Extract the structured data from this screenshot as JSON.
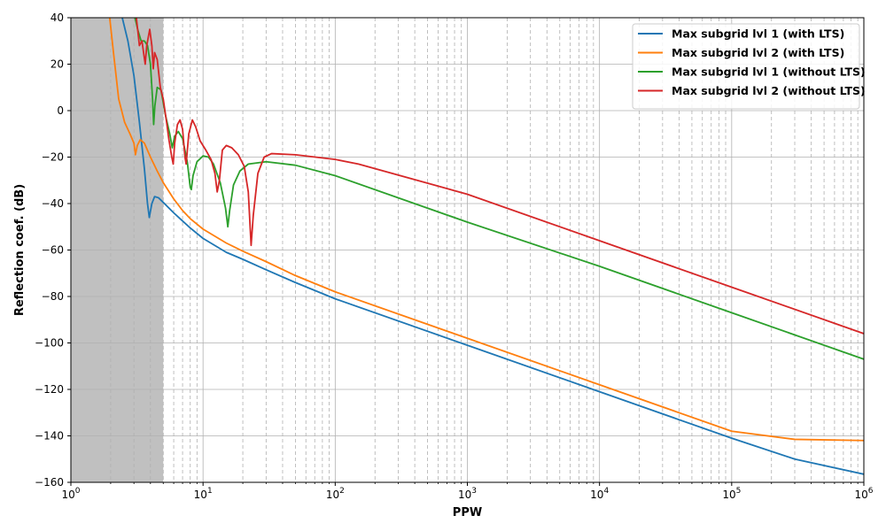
{
  "chart_data": {
    "type": "line",
    "xscale": "log",
    "xlim": [
      1,
      1000000
    ],
    "ylim": [
      -160,
      40
    ],
    "xlabel": "PPW",
    "ylabel": "Reflection coef. (dB)",
    "grid": true,
    "legend_position": "top-right",
    "shaded_region": {
      "x": [
        1,
        5
      ],
      "color": "#c0c0c0"
    },
    "xticks": [
      {
        "value": 1,
        "base": "10",
        "exp": "0"
      },
      {
        "value": 10,
        "base": "10",
        "exp": "1"
      },
      {
        "value": 100,
        "base": "10",
        "exp": "2"
      },
      {
        "value": 1000,
        "base": "10",
        "exp": "3"
      },
      {
        "value": 10000,
        "base": "10",
        "exp": "4"
      },
      {
        "value": 100000,
        "base": "10",
        "exp": "5"
      },
      {
        "value": 1000000,
        "base": "10",
        "exp": "6"
      }
    ],
    "yticks": [
      {
        "value": 40,
        "label": "40"
      },
      {
        "value": 20,
        "label": "20"
      },
      {
        "value": 0,
        "label": "0"
      },
      {
        "value": -20,
        "label": "−20"
      },
      {
        "value": -40,
        "label": "−40"
      },
      {
        "value": -60,
        "label": "−60"
      },
      {
        "value": -80,
        "label": "−80"
      },
      {
        "value": -100,
        "label": "−100"
      },
      {
        "value": -120,
        "label": "−120"
      },
      {
        "value": -140,
        "label": "−140"
      },
      {
        "value": -160,
        "label": "−160"
      }
    ],
    "series": [
      {
        "name": "Max subgrid lvl 1 (with LTS)",
        "color": "#1f77b4",
        "points": [
          [
            2.4,
            42
          ],
          [
            2.7,
            30
          ],
          [
            3.0,
            15
          ],
          [
            3.3,
            -5
          ],
          [
            3.6,
            -25
          ],
          [
            3.8,
            -40
          ],
          [
            3.92,
            -46
          ],
          [
            4.1,
            -40
          ],
          [
            4.3,
            -37
          ],
          [
            4.6,
            -37.5
          ],
          [
            5.0,
            -39.5
          ],
          [
            6,
            -44
          ],
          [
            7,
            -47.5
          ],
          [
            8,
            -50.5
          ],
          [
            10,
            -55
          ],
          [
            15,
            -61
          ],
          [
            20,
            -64
          ],
          [
            30,
            -68.5
          ],
          [
            50,
            -74
          ],
          [
            100,
            -81
          ],
          [
            1000,
            -101
          ],
          [
            10000,
            -121
          ],
          [
            100000,
            -141
          ],
          [
            300000,
            -150
          ],
          [
            1000000,
            -156.5
          ]
        ]
      },
      {
        "name": "Max subgrid lvl 2 (with LTS)",
        "color": "#ff7f0e",
        "points": [
          [
            1.95,
            42
          ],
          [
            2.1,
            25
          ],
          [
            2.3,
            5
          ],
          [
            2.55,
            -5
          ],
          [
            2.8,
            -10
          ],
          [
            3.0,
            -14
          ],
          [
            3.08,
            -19
          ],
          [
            3.18,
            -15
          ],
          [
            3.35,
            -12.5
          ],
          [
            3.6,
            -14
          ],
          [
            4.0,
            -20
          ],
          [
            4.5,
            -26
          ],
          [
            5.0,
            -31
          ],
          [
            6,
            -38
          ],
          [
            7,
            -43
          ],
          [
            8,
            -46.5
          ],
          [
            10,
            -51
          ],
          [
            15,
            -57
          ],
          [
            20,
            -60.5
          ],
          [
            30,
            -65
          ],
          [
            50,
            -71
          ],
          [
            100,
            -78
          ],
          [
            1000,
            -98
          ],
          [
            10000,
            -118
          ],
          [
            100000,
            -138
          ],
          [
            300000,
            -141.5
          ],
          [
            1000000,
            -142
          ]
        ]
      },
      {
        "name": "Max subgrid lvl 1 (without LTS)",
        "color": "#2ca02c",
        "points": [
          [
            3.0,
            42
          ],
          [
            3.2,
            35
          ],
          [
            3.4,
            30
          ],
          [
            3.6,
            30
          ],
          [
            3.8,
            28
          ],
          [
            4.0,
            20
          ],
          [
            4.15,
            5
          ],
          [
            4.23,
            -6
          ],
          [
            4.32,
            2
          ],
          [
            4.5,
            10
          ],
          [
            4.8,
            9
          ],
          [
            5.2,
            -2
          ],
          [
            5.6,
            -10
          ],
          [
            5.85,
            -16
          ],
          [
            6.1,
            -11
          ],
          [
            6.5,
            -9
          ],
          [
            7.0,
            -12
          ],
          [
            7.6,
            -22
          ],
          [
            8.0,
            -33
          ],
          [
            8.15,
            -34
          ],
          [
            8.4,
            -28
          ],
          [
            9.0,
            -22
          ],
          [
            10,
            -19.5
          ],
          [
            11,
            -20
          ],
          [
            12,
            -23
          ],
          [
            13.5,
            -31
          ],
          [
            14.8,
            -42
          ],
          [
            15.4,
            -50
          ],
          [
            15.9,
            -43
          ],
          [
            17,
            -32
          ],
          [
            19,
            -26
          ],
          [
            22,
            -23
          ],
          [
            30,
            -22
          ],
          [
            50,
            -23.5
          ],
          [
            100,
            -28
          ],
          [
            1000,
            -48
          ],
          [
            10000,
            -67
          ],
          [
            100000,
            -87
          ],
          [
            1000000,
            -107
          ]
        ]
      },
      {
        "name": "Max subgrid lvl 2 (without LTS)",
        "color": "#d62728",
        "points": [
          [
            3.1,
            42
          ],
          [
            3.2,
            35
          ],
          [
            3.3,
            28
          ],
          [
            3.45,
            30
          ],
          [
            3.65,
            20
          ],
          [
            3.75,
            28
          ],
          [
            3.95,
            35
          ],
          [
            4.1,
            28
          ],
          [
            4.2,
            18
          ],
          [
            4.3,
            25
          ],
          [
            4.5,
            22
          ],
          [
            4.75,
            10
          ],
          [
            5.0,
            5
          ],
          [
            5.3,
            -5
          ],
          [
            5.5,
            -12
          ],
          [
            5.8,
            -20
          ],
          [
            5.95,
            -23
          ],
          [
            6.1,
            -14
          ],
          [
            6.4,
            -6
          ],
          [
            6.7,
            -4
          ],
          [
            7.0,
            -8
          ],
          [
            7.3,
            -20
          ],
          [
            7.45,
            -23
          ],
          [
            7.8,
            -10
          ],
          [
            8.3,
            -4
          ],
          [
            8.8,
            -7
          ],
          [
            9.5,
            -13
          ],
          [
            10.5,
            -17
          ],
          [
            11.5,
            -21
          ],
          [
            12.3,
            -27
          ],
          [
            12.8,
            -35
          ],
          [
            13.3,
            -30
          ],
          [
            14,
            -17
          ],
          [
            15,
            -15
          ],
          [
            16.5,
            -16
          ],
          [
            18.5,
            -19
          ],
          [
            20.5,
            -24
          ],
          [
            22,
            -35
          ],
          [
            23.1,
            -58
          ],
          [
            24,
            -45
          ],
          [
            26,
            -27
          ],
          [
            29,
            -20
          ],
          [
            33,
            -18.5
          ],
          [
            50,
            -19
          ],
          [
            100,
            -21
          ],
          [
            150,
            -23
          ],
          [
            1000,
            -36
          ],
          [
            10000,
            -56
          ],
          [
            100000,
            -76
          ],
          [
            1000000,
            -96
          ]
        ]
      }
    ]
  }
}
